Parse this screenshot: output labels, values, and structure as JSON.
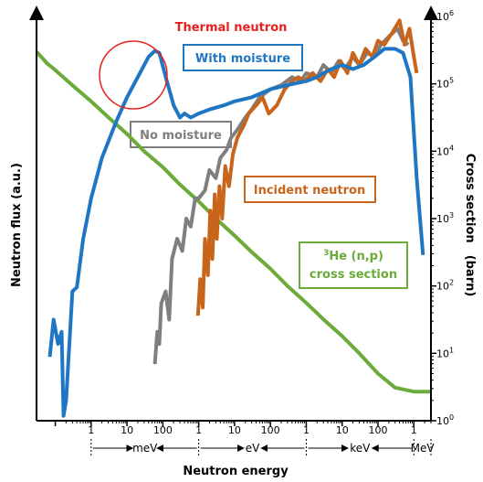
{
  "chart_data": {
    "type": "line",
    "xlabel": "Neutron energy",
    "ylabel_left": "Neutron flux (a.u.)",
    "ylabel_right": "Cross section　(barn)",
    "x_unit": "eV",
    "x_scale": "log",
    "xlim": [
      3e-05,
      3000000
    ],
    "y_left_scale": "linear_arbitrary",
    "y_right_scale": "log",
    "y_right_lim": [
      1,
      1000000
    ],
    "x_tick_labels": [
      {
        "x": 0.001,
        "label": "1"
      },
      {
        "x": 0.01,
        "label": "10"
      },
      {
        "x": 0.1,
        "label": "100"
      },
      {
        "x": 1,
        "label": "1"
      },
      {
        "x": 10,
        "label": "10"
      },
      {
        "x": 100,
        "label": "100"
      },
      {
        "x": 1000,
        "label": "1"
      },
      {
        "x": 10000,
        "label": "10"
      },
      {
        "x": 100000,
        "label": "100"
      },
      {
        "x": 1000000,
        "label": "1"
      }
    ],
    "unit_ranges": [
      {
        "label": "meV",
        "from": 0.001,
        "to": 1
      },
      {
        "label": "eV",
        "from": 1,
        "to": 1000
      },
      {
        "label": "keV",
        "from": 1000,
        "to": 1000000
      },
      {
        "label": "MeV",
        "from": 1000000,
        "to": 3000000
      }
    ],
    "y_right_tick_labels": [
      {
        "y": 1,
        "base": "10",
        "exp": "0"
      },
      {
        "y": 10,
        "base": "10",
        "exp": "1"
      },
      {
        "y": 100,
        "base": "10",
        "exp": "2"
      },
      {
        "y": 1000,
        "base": "10",
        "exp": "3"
      },
      {
        "y": 10000,
        "base": "10",
        "exp": "4"
      },
      {
        "y": 100000,
        "base": "10",
        "exp": "5"
      },
      {
        "y": 1000000,
        "base": "10",
        "exp": "6"
      }
    ],
    "annotations": {
      "thermal_neutron": "Thermal neutron",
      "with_moisture": "With moisture",
      "no_moisture": "No moisture",
      "incident_neutron": "Incident neutron",
      "he3_sup": "3",
      "he3_label": "He (n,p)",
      "he3_label2": "cross section"
    },
    "colors": {
      "with_moisture": "#1f77c4",
      "no_moisture": "#7f7f7f",
      "incident": "#c8651b",
      "cross_section": "#6aab3a",
      "thermal": "#e8201f"
    },
    "series": [
      {
        "key": "cross_section",
        "axis": "right",
        "points": [
          [
            3e-05,
            300000
          ],
          [
            6e-05,
            200000
          ],
          [
            0.0001,
            160000
          ],
          [
            0.0003,
            95000
          ],
          [
            0.001,
            55000
          ],
          [
            0.003,
            32000
          ],
          [
            0.01,
            18000
          ],
          [
            0.03,
            10000
          ],
          [
            0.1,
            5800
          ],
          [
            0.3,
            3200
          ],
          [
            1,
            1800
          ],
          [
            3,
            1000
          ],
          [
            10,
            560
          ],
          [
            30,
            320
          ],
          [
            100,
            180
          ],
          [
            300,
            100
          ],
          [
            1000,
            56
          ],
          [
            3000,
            32
          ],
          [
            10000,
            18
          ],
          [
            30000,
            10
          ],
          [
            100000,
            5
          ],
          [
            300000,
            3.1
          ],
          [
            1000000,
            2.7
          ],
          [
            3000000,
            2.7
          ]
        ]
      },
      {
        "key": "with_moisture",
        "axis": "left",
        "points": [
          [
            7e-05,
            0.158
          ],
          [
            9e-05,
            0.25
          ],
          [
            0.00012,
            0.19
          ],
          [
            0.00015,
            0.22
          ],
          [
            0.00017,
            0.012
          ],
          [
            0.0002,
            0.05
          ],
          [
            0.0003,
            0.32
          ],
          [
            0.0004,
            0.33
          ],
          [
            0.0006,
            0.45
          ],
          [
            0.001,
            0.55
          ],
          [
            0.002,
            0.65
          ],
          [
            0.005,
            0.74
          ],
          [
            0.01,
            0.8
          ],
          [
            0.02,
            0.85
          ],
          [
            0.04,
            0.9
          ],
          [
            0.06,
            0.915
          ],
          [
            0.08,
            0.91
          ],
          [
            0.12,
            0.85
          ],
          [
            0.2,
            0.78
          ],
          [
            0.3,
            0.75
          ],
          [
            0.4,
            0.76
          ],
          [
            0.6,
            0.75
          ],
          [
            1,
            0.76
          ],
          [
            2,
            0.77
          ],
          [
            5,
            0.78
          ],
          [
            10,
            0.79
          ],
          [
            30,
            0.8
          ],
          [
            100,
            0.82
          ],
          [
            300,
            0.83
          ],
          [
            1000,
            0.84
          ],
          [
            2000,
            0.85
          ],
          [
            3000,
            0.86
          ],
          [
            5000,
            0.87
          ],
          [
            10000,
            0.88
          ],
          [
            20000,
            0.87
          ],
          [
            40000,
            0.88
          ],
          [
            80000,
            0.9
          ],
          [
            150000,
            0.92
          ],
          [
            300000,
            0.92
          ],
          [
            500000,
            0.91
          ],
          [
            800000,
            0.85
          ],
          [
            1200000,
            0.6
          ],
          [
            1800000,
            0.41
          ]
        ]
      },
      {
        "key": "no_moisture",
        "axis": "left",
        "points": [
          [
            0.06,
            0.14
          ],
          [
            0.07,
            0.22
          ],
          [
            0.08,
            0.19
          ],
          [
            0.09,
            0.29
          ],
          [
            0.12,
            0.32
          ],
          [
            0.15,
            0.25
          ],
          [
            0.18,
            0.4
          ],
          [
            0.25,
            0.45
          ],
          [
            0.35,
            0.42
          ],
          [
            0.45,
            0.5
          ],
          [
            0.6,
            0.48
          ],
          [
            0.8,
            0.55
          ],
          [
            1,
            0.55
          ],
          [
            1.5,
            0.57
          ],
          [
            2,
            0.62
          ],
          [
            3,
            0.6
          ],
          [
            4,
            0.65
          ],
          [
            6,
            0.67
          ],
          [
            8,
            0.7
          ],
          [
            12,
            0.72
          ],
          [
            20,
            0.75
          ],
          [
            30,
            0.77
          ],
          [
            50,
            0.8
          ],
          [
            100,
            0.82
          ],
          [
            200,
            0.83
          ],
          [
            400,
            0.85
          ],
          [
            700,
            0.84
          ],
          [
            1000,
            0.86
          ],
          [
            2000,
            0.85
          ],
          [
            3000,
            0.88
          ],
          [
            5000,
            0.86
          ],
          [
            8000,
            0.89
          ],
          [
            12000,
            0.87
          ],
          [
            20000,
            0.9
          ],
          [
            30000,
            0.88
          ],
          [
            50000,
            0.91
          ],
          [
            80000,
            0.9
          ],
          [
            120000,
            0.93
          ],
          [
            200000,
            0.95
          ],
          [
            350000,
            0.97
          ],
          [
            500000,
            0.94
          ],
          [
            700000,
            0.93
          ]
        ]
      },
      {
        "key": "incident",
        "axis": "left",
        "points": [
          [
            0.95,
            0.26
          ],
          [
            1.1,
            0.35
          ],
          [
            1.3,
            0.28
          ],
          [
            1.5,
            0.45
          ],
          [
            1.8,
            0.36
          ],
          [
            2.1,
            0.52
          ],
          [
            2.4,
            0.4
          ],
          [
            2.8,
            0.56
          ],
          [
            3.2,
            0.45
          ],
          [
            3.8,
            0.58
          ],
          [
            4.5,
            0.5
          ],
          [
            5.5,
            0.63
          ],
          [
            7,
            0.58
          ],
          [
            9,
            0.66
          ],
          [
            12,
            0.7
          ],
          [
            18,
            0.73
          ],
          [
            25,
            0.76
          ],
          [
            40,
            0.78
          ],
          [
            60,
            0.8
          ],
          [
            90,
            0.76
          ],
          [
            150,
            0.78
          ],
          [
            250,
            0.82
          ],
          [
            400,
            0.84
          ],
          [
            600,
            0.85
          ],
          [
            900,
            0.84
          ],
          [
            1500,
            0.86
          ],
          [
            2500,
            0.84
          ],
          [
            4000,
            0.87
          ],
          [
            6000,
            0.85
          ],
          [
            9000,
            0.89
          ],
          [
            14000,
            0.86
          ],
          [
            20000,
            0.91
          ],
          [
            30000,
            0.88
          ],
          [
            45000,
            0.92
          ],
          [
            70000,
            0.9
          ],
          [
            100000,
            0.94
          ],
          [
            150000,
            0.93
          ],
          [
            250000,
            0.96
          ],
          [
            400000,
            0.99
          ],
          [
            550000,
            0.93
          ],
          [
            750000,
            0.97
          ],
          [
            1000000,
            0.9
          ],
          [
            1200000,
            0.86
          ]
        ]
      }
    ]
  }
}
